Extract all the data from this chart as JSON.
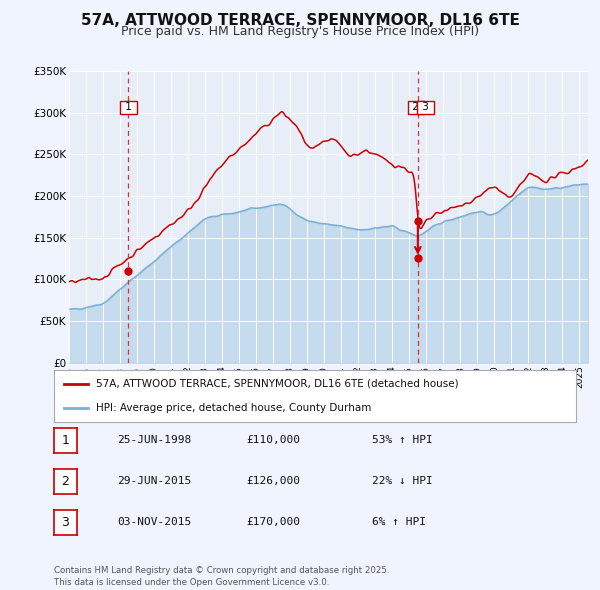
{
  "title": "57A, ATTWOOD TERRACE, SPENNYMOOR, DL16 6TE",
  "subtitle": "Price paid vs. HM Land Registry's House Price Index (HPI)",
  "title_fontsize": 11,
  "subtitle_fontsize": 9,
  "background_color": "#f0f4ff",
  "plot_bg_color": "#e8eef8",
  "red_line_color": "#cc0000",
  "blue_line_color": "#7ab0d4",
  "vline_color": "#dd3333",
  "ylim": [
    0,
    350000
  ],
  "yticks": [
    0,
    50000,
    100000,
    150000,
    200000,
    250000,
    300000,
    350000
  ],
  "ytick_labels": [
    "£0",
    "£50K",
    "£100K",
    "£150K",
    "£200K",
    "£250K",
    "£300K",
    "£350K"
  ],
  "xlim_start": 1995.0,
  "xlim_end": 2025.5,
  "xticks": [
    1995,
    1996,
    1997,
    1998,
    1999,
    2000,
    2001,
    2002,
    2003,
    2004,
    2005,
    2006,
    2007,
    2008,
    2009,
    2010,
    2011,
    2012,
    2013,
    2014,
    2015,
    2016,
    2017,
    2018,
    2019,
    2020,
    2021,
    2022,
    2023,
    2024,
    2025
  ],
  "sale1_x": 1998.49,
  "sale1_y": 110000,
  "sale1_label": "1",
  "sale23_x": 2015.5,
  "sale2_y": 126000,
  "sale2_label": "2",
  "sale3_y": 170000,
  "sale3_label": "3",
  "legend_label_red": "57A, ATTWOOD TERRACE, SPENNYMOOR, DL16 6TE (detached house)",
  "legend_label_blue": "HPI: Average price, detached house, County Durham",
  "table_rows": [
    {
      "num": "1",
      "date": "25-JUN-1998",
      "price": "£110,000",
      "hpi": "53% ↑ HPI"
    },
    {
      "num": "2",
      "date": "29-JUN-2015",
      "price": "£126,000",
      "hpi": "22% ↓ HPI"
    },
    {
      "num": "3",
      "date": "03-NOV-2015",
      "price": "£170,000",
      "hpi": "6% ↑ HPI"
    }
  ],
  "footer": "Contains HM Land Registry data © Crown copyright and database right 2025.\nThis data is licensed under the Open Government Licence v3.0."
}
